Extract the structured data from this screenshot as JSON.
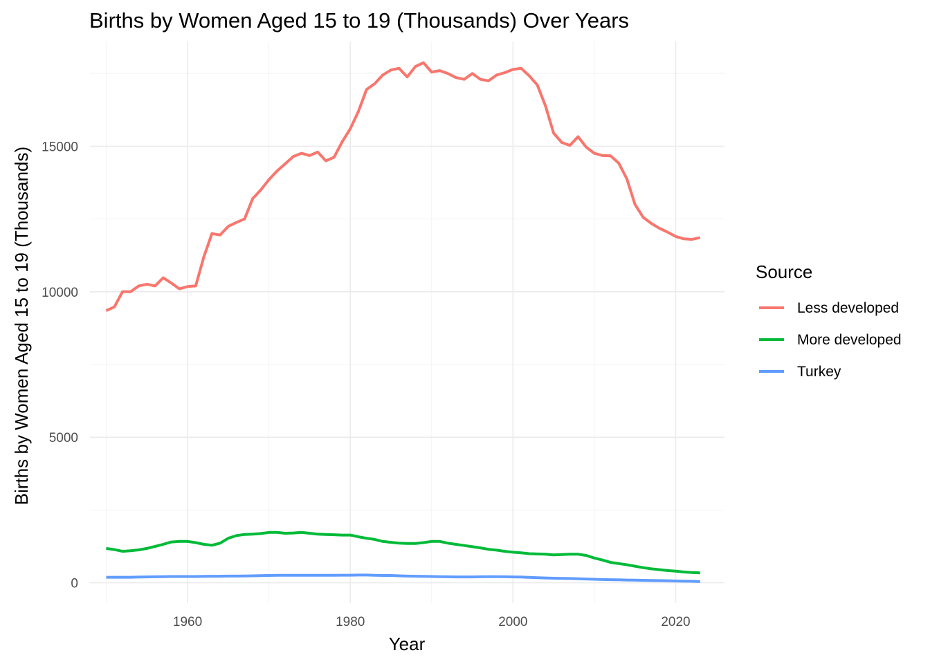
{
  "chart_data": {
    "type": "line",
    "title": "Births by Women Aged 15 to 19 (Thousands) Over Years",
    "xlabel": "Year",
    "ylabel": "Births by Women Aged 15 to 19 (Thousands)",
    "xlim": [
      1948,
      2026
    ],
    "ylim": [
      -700,
      18600
    ],
    "x_ticks": [
      1960,
      1980,
      2000,
      2020
    ],
    "y_ticks": [
      0,
      5000,
      10000,
      15000
    ],
    "x_tick_labels": [
      "1960",
      "1980",
      "2000",
      "2020"
    ],
    "y_tick_labels": [
      "0",
      "5000",
      "10000",
      "15000"
    ],
    "grid": true,
    "legend": {
      "title": "Source",
      "position": "right"
    },
    "x": [
      1950,
      1951,
      1952,
      1953,
      1954,
      1955,
      1956,
      1957,
      1958,
      1959,
      1960,
      1961,
      1962,
      1963,
      1964,
      1965,
      1966,
      1967,
      1968,
      1969,
      1970,
      1971,
      1972,
      1973,
      1974,
      1975,
      1976,
      1977,
      1978,
      1979,
      1980,
      1981,
      1982,
      1983,
      1984,
      1985,
      1986,
      1987,
      1988,
      1989,
      1990,
      1991,
      1992,
      1993,
      1994,
      1995,
      1996,
      1997,
      1998,
      1999,
      2000,
      2001,
      2002,
      2003,
      2004,
      2005,
      2006,
      2007,
      2008,
      2009,
      2010,
      2011,
      2012,
      2013,
      2014,
      2015,
      2016,
      2017,
      2018,
      2019,
      2020,
      2021,
      2022,
      2023
    ],
    "series": [
      {
        "name": "Less developed",
        "color": "#f8766d",
        "values": [
          9350,
          9480,
          10000,
          10000,
          10200,
          10260,
          10200,
          10480,
          10300,
          10100,
          10180,
          10200,
          11200,
          12000,
          11950,
          12250,
          12380,
          12500,
          13200,
          13500,
          13850,
          14150,
          14400,
          14650,
          14760,
          14680,
          14800,
          14500,
          14620,
          15150,
          15600,
          16200,
          16950,
          17150,
          17450,
          17620,
          17680,
          17380,
          17740,
          17870,
          17550,
          17600,
          17500,
          17360,
          17300,
          17500,
          17300,
          17250,
          17450,
          17530,
          17640,
          17680,
          17420,
          17100,
          16380,
          15450,
          15130,
          15030,
          15330,
          14970,
          14760,
          14680,
          14670,
          14420,
          13880,
          13000,
          12560,
          12350,
          12180,
          12050,
          11900,
          11820,
          11800,
          11860
        ]
      },
      {
        "name": "More developed",
        "color": "#00ba38",
        "values": [
          1180,
          1140,
          1080,
          1100,
          1130,
          1180,
          1250,
          1320,
          1400,
          1420,
          1420,
          1380,
          1320,
          1290,
          1360,
          1530,
          1620,
          1660,
          1670,
          1690,
          1730,
          1730,
          1700,
          1710,
          1730,
          1700,
          1670,
          1660,
          1650,
          1640,
          1640,
          1580,
          1530,
          1490,
          1420,
          1390,
          1360,
          1350,
          1350,
          1380,
          1420,
          1420,
          1360,
          1320,
          1280,
          1240,
          1200,
          1150,
          1120,
          1080,
          1050,
          1030,
          1000,
          990,
          980,
          960,
          970,
          980,
          980,
          940,
          850,
          780,
          700,
          660,
          620,
          570,
          520,
          480,
          450,
          420,
          400,
          370,
          350,
          340
        ]
      },
      {
        "name": "Turkey",
        "color": "#619cff",
        "values": [
          190,
          190,
          190,
          190,
          195,
          200,
          205,
          210,
          215,
          215,
          215,
          215,
          220,
          225,
          225,
          230,
          230,
          235,
          240,
          245,
          250,
          255,
          255,
          255,
          255,
          255,
          255,
          255,
          255,
          260,
          260,
          265,
          265,
          255,
          250,
          250,
          240,
          230,
          225,
          220,
          215,
          210,
          205,
          200,
          200,
          200,
          205,
          210,
          210,
          205,
          200,
          195,
          185,
          175,
          165,
          155,
          150,
          145,
          140,
          130,
          120,
          110,
          105,
          100,
          95,
          90,
          85,
          80,
          75,
          70,
          60,
          55,
          50,
          40
        ]
      }
    ]
  }
}
